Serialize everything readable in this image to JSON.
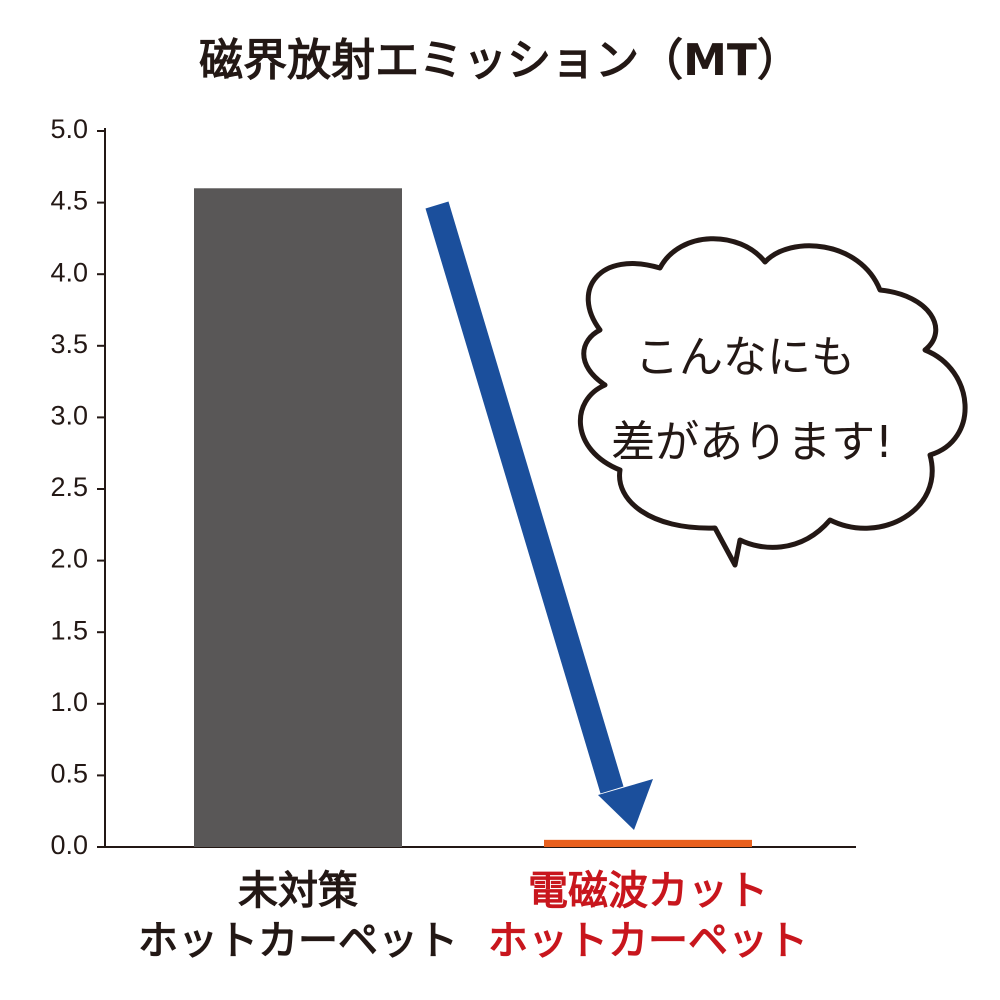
{
  "chart_data": {
    "type": "bar",
    "title": "磁界放射エミッション（MT）",
    "categories": [
      [
        "未対策",
        "ホットカーペット"
      ],
      [
        "電磁波カット",
        "ホットカーペット"
      ]
    ],
    "values": [
      4.6,
      0.05
    ],
    "colors": [
      "#595757",
      "#e8601e"
    ],
    "label_colors": [
      "#231815",
      "#c8161d"
    ],
    "ylim": [
      0,
      5
    ],
    "yticks": [
      {
        "value": 0,
        "label": "0.0"
      },
      0.5,
      {
        "value": 1,
        "label": "1.0"
      },
      1.5,
      {
        "value": 2,
        "label": "2.0"
      },
      2.5,
      {
        "value": 3,
        "label": "3.0"
      },
      3.5,
      {
        "value": 4,
        "label": "4.0"
      },
      4.5,
      {
        "value": 5,
        "label": "5.0"
      }
    ],
    "annotation": [
      "こんなにも",
      "差があります!"
    ]
  }
}
